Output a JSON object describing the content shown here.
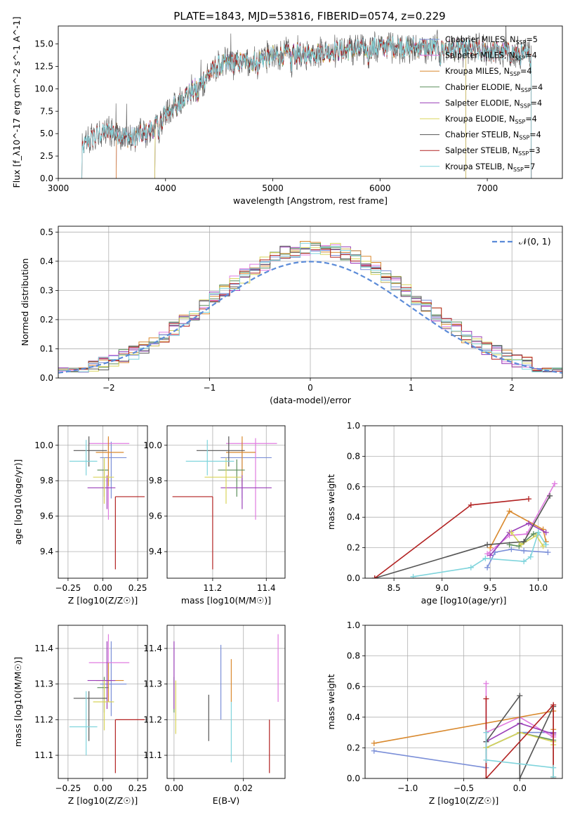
{
  "chart_data": [
    {
      "type": "line",
      "title": "PLATE=1843, MJD=53816, FIBERID=0574, z=0.229",
      "xlabel": "wavelength [Angstrom, rest frame]",
      "ylabel": "Flux [f_λ10^-17 erg cm^-2 s^-1 A^-1]",
      "xlim": [
        3000,
        7700
      ],
      "ylim": [
        0,
        17
      ],
      "xticks": [
        3000,
        4000,
        5000,
        6000,
        7000
      ],
      "yticks": [
        0.0,
        2.5,
        5.0,
        7.5,
        10.0,
        12.5,
        15.0
      ],
      "grid": false,
      "legend_position": "upper-right",
      "series": [
        {
          "name": "Chabrier MILES, N_SSP=5",
          "color": "#7b8fd8",
          "start": 3540,
          "end": 7410
        },
        {
          "name": "Salpeter MILES, N_SSP=4",
          "color": "#e07be0",
          "start": 3540,
          "end": 7410
        },
        {
          "name": "Kroupa MILES, N_SSP=4",
          "color": "#d9892e",
          "start": 3540,
          "end": 7410
        },
        {
          "name": "Chabrier ELODIE, N_SSP=4",
          "color": "#5c8f5c",
          "start": 3900,
          "end": 6800
        },
        {
          "name": "Salpeter ELODIE, N_SSP=4",
          "color": "#9a3fb8",
          "start": 3900,
          "end": 6800
        },
        {
          "name": "Kroupa ELODIE, N_SSP=4",
          "color": "#d8d45a",
          "start": 3900,
          "end": 6800
        },
        {
          "name": "Chabrier STELIB, N_SSP=4",
          "color": "#555555",
          "start": 3220,
          "end": 7410
        },
        {
          "name": "Salpeter STELIB, N_SSP=3",
          "color": "#b22222",
          "start": 3220,
          "end": 7410
        },
        {
          "name": "Kroupa STELIB, N_SSP=7",
          "color": "#7fd4dc",
          "start": 3220,
          "end": 7410
        }
      ],
      "continuum": {
        "x": [
          3220,
          3300,
          3400,
          3500,
          3600,
          3700,
          3800,
          3900,
          4000,
          4100,
          4200,
          4300,
          4400,
          4500,
          4600,
          4800,
          5000,
          5200,
          5400,
          5600,
          5800,
          6000,
          6200,
          6400,
          6600,
          6800,
          7000,
          7200,
          7400
        ],
        "y": [
          3.4,
          4.4,
          5.0,
          5.3,
          4.7,
          4.6,
          5.0,
          5.8,
          7.2,
          8.2,
          9.4,
          10.2,
          11.6,
          12.6,
          12.9,
          13.1,
          13.6,
          13.9,
          14.0,
          14.3,
          14.4,
          14.7,
          14.7,
          14.6,
          14.5,
          14.3,
          14.2,
          14.0,
          13.7
        ]
      }
    },
    {
      "type": "histogram",
      "xlabel": "(data-model)/error",
      "ylabel": "Normed distribution",
      "xlim": [
        -2.5,
        2.5
      ],
      "ylim": [
        0,
        0.52
      ],
      "xticks": [
        -2,
        -1,
        0,
        1,
        2
      ],
      "yticks": [
        0.0,
        0.1,
        0.2,
        0.3,
        0.4,
        0.5
      ],
      "grid": true,
      "legend_position": "upper-right",
      "reference_curve": {
        "name": "𝒩(0, 1)",
        "color": "#5b8bd8",
        "style": "dashed"
      },
      "bin_width": 0.1,
      "series_colors": [
        "#7b8fd8",
        "#e07be0",
        "#d9892e",
        "#5c8f5c",
        "#9a3fb8",
        "#d8d45a",
        "#555555",
        "#b22222",
        "#7fd4dc"
      ]
    },
    {
      "type": "scatter",
      "xlabel": "Z [log10(Z/Z☉)]",
      "ylabel": "age [log10(age/yr)]",
      "xlim": [
        -0.32,
        0.32
      ],
      "ylim": [
        9.25,
        10.11
      ],
      "xticks": [
        -0.25,
        0.0,
        0.25
      ],
      "xtick_labels": [
        "−0.25",
        "0.00",
        "0.25"
      ],
      "yticks": [
        9.4,
        9.6,
        9.8,
        10.0
      ],
      "grid": true,
      "points": [
        {
          "color": "#7b8fd8",
          "x": 0.06,
          "y": 9.93,
          "xerr": [
            0.08,
            0.11
          ],
          "yerr": [
            0.23,
            0.09
          ]
        },
        {
          "color": "#e07be0",
          "x": 0.04,
          "y": 10.01,
          "xerr": [
            0.14,
            0.15
          ],
          "yerr": [
            0.43,
            0.03
          ]
        },
        {
          "color": "#d9892e",
          "x": 0.04,
          "y": 9.96,
          "xerr": [
            0.09,
            0.11
          ],
          "yerr": [
            0.19,
            0.09
          ]
        },
        {
          "color": "#5c8f5c",
          "x": 0.01,
          "y": 9.86,
          "xerr": [
            0.05,
            0.03
          ],
          "yerr": [
            0.15,
            0.06
          ]
        },
        {
          "color": "#9a3fb8",
          "x": 0.03,
          "y": 9.76,
          "xerr": [
            0.14,
            0.06
          ],
          "yerr": [
            0.12,
            0.07
          ]
        },
        {
          "color": "#d8d45a",
          "x": 0.01,
          "y": 9.82,
          "xerr": [
            0.08,
            0.07
          ],
          "yerr": [
            0.15,
            0.11
          ]
        },
        {
          "color": "#555555",
          "x": -0.1,
          "y": 9.97,
          "xerr": [
            0.11,
            0.13
          ],
          "yerr": [
            0.09,
            0.08
          ]
        },
        {
          "color": "#b22222",
          "x": 0.09,
          "y": 9.71,
          "xerr": [
            0.0,
            0.21
          ],
          "yerr": [
            0.41,
            0.0
          ]
        },
        {
          "color": "#7fd4dc",
          "x": -0.12,
          "y": 9.91,
          "xerr": [
            0.12,
            0.08
          ],
          "yerr": [
            0.08,
            0.12
          ]
        }
      ]
    },
    {
      "type": "scatter",
      "xlabel": "mass [log10(M/M☉)]",
      "ylabel": "",
      "xlim": [
        11.03,
        11.47
      ],
      "ylim": [
        9.25,
        10.11
      ],
      "xticks": [
        11.2,
        11.4
      ],
      "yticks": [
        9.4,
        9.6,
        9.8,
        10.0
      ],
      "grid": true,
      "points": [
        {
          "color": "#7b8fd8",
          "x": 11.31,
          "y": 9.93,
          "xerr": [
            0.08,
            0.11
          ],
          "yerr": [
            0.23,
            0.09
          ]
        },
        {
          "color": "#e07be0",
          "x": 11.36,
          "y": 10.01,
          "xerr": [
            0.11,
            0.08
          ],
          "yerr": [
            0.43,
            0.03
          ]
        },
        {
          "color": "#d9892e",
          "x": 11.31,
          "y": 9.96,
          "xerr": [
            0.06,
            0.05
          ],
          "yerr": [
            0.19,
            0.09
          ]
        },
        {
          "color": "#5c8f5c",
          "x": 11.29,
          "y": 9.86,
          "xerr": [
            0.07,
            0.03
          ],
          "yerr": [
            0.15,
            0.06
          ]
        },
        {
          "color": "#9a3fb8",
          "x": 11.31,
          "y": 9.76,
          "xerr": [
            0.08,
            0.11
          ],
          "yerr": [
            0.12,
            0.07
          ]
        },
        {
          "color": "#d8d45a",
          "x": 11.25,
          "y": 9.82,
          "xerr": [
            0.08,
            0.06
          ],
          "yerr": [
            0.15,
            0.11
          ]
        },
        {
          "color": "#555555",
          "x": 11.26,
          "y": 9.97,
          "xerr": [
            0.12,
            0.06
          ],
          "yerr": [
            0.09,
            0.08
          ]
        },
        {
          "color": "#b22222",
          "x": 11.2,
          "y": 9.71,
          "xerr": [
            0.15,
            0.0
          ],
          "yerr": [
            0.41,
            0.0
          ]
        },
        {
          "color": "#7fd4dc",
          "x": 11.18,
          "y": 9.91,
          "xerr": [
            0.08,
            0.1
          ],
          "yerr": [
            0.08,
            0.12
          ]
        }
      ]
    },
    {
      "type": "line",
      "xlabel": "age [log10(age/yr)]",
      "ylabel": "mass weight",
      "xlim": [
        8.2,
        10.25
      ],
      "ylim": [
        0,
        1
      ],
      "xticks": [
        8.5,
        9.0,
        9.5,
        10.0
      ],
      "yticks": [
        0.0,
        0.2,
        0.4,
        0.6,
        0.8,
        1.0
      ],
      "grid": true,
      "series": [
        {
          "color": "#7b8fd8",
          "x": [
            9.47,
            9.55,
            9.72,
            9.85,
            10.1
          ],
          "y": [
            0.07,
            0.17,
            0.19,
            0.18,
            0.17
          ]
        },
        {
          "color": "#e07be0",
          "x": [
            9.47,
            9.7,
            9.88,
            10.17
          ],
          "y": [
            0.16,
            0.28,
            0.29,
            0.62
          ]
        },
        {
          "color": "#d9892e",
          "x": [
            9.5,
            9.7,
            10.05,
            10.08
          ],
          "y": [
            0.2,
            0.44,
            0.32,
            0.24
          ]
        },
        {
          "color": "#5c8f5c",
          "x": [
            9.7,
            9.8,
            9.95,
            10.0
          ],
          "y": [
            0.22,
            0.21,
            0.29,
            0.3
          ]
        },
        {
          "color": "#9a3fb8",
          "x": [
            9.5,
            9.7,
            9.9,
            10.08
          ],
          "y": [
            0.15,
            0.3,
            0.36,
            0.3
          ]
        },
        {
          "color": "#d8d45a",
          "x": [
            9.72,
            9.82,
            9.98,
            10.05
          ],
          "y": [
            0.3,
            0.22,
            0.28,
            0.21
          ]
        },
        {
          "color": "#555555",
          "x": [
            8.3,
            9.47,
            9.85,
            10.12
          ],
          "y": [
            0.0,
            0.22,
            0.24,
            0.54
          ]
        },
        {
          "color": "#b22222",
          "x": [
            8.3,
            9.3,
            9.9
          ],
          "y": [
            0.0,
            0.48,
            0.52
          ]
        },
        {
          "color": "#7fd4dc",
          "x": [
            8.7,
            9.3,
            9.45,
            9.85,
            9.92,
            10.0,
            10.08
          ],
          "y": [
            0.01,
            0.07,
            0.13,
            0.11,
            0.14,
            0.3,
            0.22
          ]
        }
      ]
    },
    {
      "type": "scatter",
      "xlabel": "Z [log10(Z/Z☉)]",
      "ylabel": "mass [log10(M/M☉)]",
      "xlim": [
        -0.32,
        0.32
      ],
      "ylim": [
        11.035,
        11.465
      ],
      "xticks": [
        -0.25,
        0.0,
        0.25
      ],
      "xtick_labels": [
        "−0.25",
        "0.00",
        "0.25"
      ],
      "yticks": [
        11.1,
        11.2,
        11.3,
        11.4
      ],
      "grid": true,
      "points": [
        {
          "color": "#7b8fd8",
          "x": 0.06,
          "y": 11.3,
          "xerr": [
            0.08,
            0.11
          ],
          "yerr": [
            0.09,
            0.12
          ]
        },
        {
          "color": "#e07be0",
          "x": 0.04,
          "y": 11.36,
          "xerr": [
            0.14,
            0.15
          ],
          "yerr": [
            0.11,
            0.08
          ]
        },
        {
          "color": "#d9892e",
          "x": 0.04,
          "y": 11.31,
          "xerr": [
            0.09,
            0.11
          ],
          "yerr": [
            0.06,
            0.05
          ]
        },
        {
          "color": "#5c8f5c",
          "x": 0.01,
          "y": 11.29,
          "xerr": [
            0.05,
            0.03
          ],
          "yerr": [
            0.07,
            0.03
          ]
        },
        {
          "color": "#9a3fb8",
          "x": 0.03,
          "y": 11.31,
          "xerr": [
            0.14,
            0.06
          ],
          "yerr": [
            0.08,
            0.11
          ]
        },
        {
          "color": "#d8d45a",
          "x": 0.01,
          "y": 11.25,
          "xerr": [
            0.08,
            0.07
          ],
          "yerr": [
            0.08,
            0.06
          ]
        },
        {
          "color": "#555555",
          "x": -0.1,
          "y": 11.26,
          "xerr": [
            0.11,
            0.13
          ],
          "yerr": [
            0.12,
            0.02
          ]
        },
        {
          "color": "#b22222",
          "x": 0.09,
          "y": 11.2,
          "xerr": [
            0.0,
            0.21
          ],
          "yerr": [
            0.15,
            0.0
          ]
        },
        {
          "color": "#7fd4dc",
          "x": -0.12,
          "y": 11.18,
          "xerr": [
            0.12,
            0.08
          ],
          "yerr": [
            0.08,
            0.1
          ]
        }
      ]
    },
    {
      "type": "scatter",
      "xlabel": "E(B-V)",
      "ylabel": "",
      "xlim": [
        -0.002,
        0.032
      ],
      "ylim": [
        11.035,
        11.465
      ],
      "xticks": [
        0.0,
        0.02
      ],
      "xtick_labels": [
        "0.00",
        "0.02"
      ],
      "yticks": [
        11.1,
        11.2,
        11.3,
        11.4
      ],
      "grid": true,
      "points": [
        {
          "color": "#7b8fd8",
          "x": 0.0135,
          "y": 11.3,
          "xerr": [
            0,
            0
          ],
          "yerr": [
            0.1,
            0.11
          ]
        },
        {
          "color": "#e07be0",
          "x": 0.03,
          "y": 11.36,
          "xerr": [
            0,
            0
          ],
          "yerr": [
            0.11,
            0.08
          ]
        },
        {
          "color": "#d9892e",
          "x": 0.0165,
          "y": 11.31,
          "xerr": [
            0,
            0
          ],
          "yerr": [
            0.06,
            0.06
          ]
        },
        {
          "color": "#5c8f5c",
          "x": 0.0,
          "y": 11.29,
          "xerr": [
            0,
            0
          ],
          "yerr": [
            0.07,
            0.03
          ]
        },
        {
          "color": "#9a3fb8",
          "x": 0.0,
          "y": 11.31,
          "xerr": [
            0,
            0
          ],
          "yerr": [
            0.08,
            0.11
          ]
        },
        {
          "color": "#d8d45a",
          "x": 0.0005,
          "y": 11.25,
          "xerr": [
            0,
            0
          ],
          "yerr": [
            0.09,
            0.06
          ]
        },
        {
          "color": "#555555",
          "x": 0.01,
          "y": 11.2,
          "xerr": [
            0,
            0
          ],
          "yerr": [
            0.06,
            0.07
          ]
        },
        {
          "color": "#b22222",
          "x": 0.0275,
          "y": 11.15,
          "xerr": [
            0,
            0
          ],
          "yerr": [
            0.1,
            0.05
          ]
        },
        {
          "color": "#7fd4dc",
          "x": 0.0165,
          "y": 11.15,
          "xerr": [
            0,
            0
          ],
          "yerr": [
            0.07,
            0.1
          ]
        }
      ]
    },
    {
      "type": "line",
      "xlabel": "Z [log10(Z/Z☉)]",
      "ylabel": "mass weight",
      "xlim": [
        -1.38,
        0.38
      ],
      "ylim": [
        0,
        1
      ],
      "xticks": [
        -1.0,
        -0.5,
        0.0
      ],
      "xtick_labels": [
        "−1.0",
        "−0.5",
        "0.0"
      ],
      "yticks": [
        0.0,
        0.2,
        0.4,
        0.6,
        0.8,
        1.0
      ],
      "grid": true,
      "series": [
        {
          "color": "#7b8fd8",
          "x": [
            -1.3,
            -0.3,
            -0.3,
            0.0,
            0.3
          ],
          "y": [
            0.18,
            0.07,
            0.2,
            0.3,
            0.3
          ]
        },
        {
          "color": "#e07be0",
          "x": [
            -0.3,
            -0.3,
            0.0,
            0.3,
            0.3
          ],
          "y": [
            0.62,
            0.3,
            0.4,
            0.27,
            0.28
          ]
        },
        {
          "color": "#d9892e",
          "x": [
            -1.3,
            0.3,
            0.3,
            0.3
          ],
          "y": [
            0.23,
            0.44,
            0.32,
            0.01
          ]
        },
        {
          "color": "#5c8f5c",
          "x": [
            -0.3,
            0.0,
            0.3
          ],
          "y": [
            0.2,
            0.3,
            0.25
          ]
        },
        {
          "color": "#9a3fb8",
          "x": [
            -0.3,
            0.0,
            0.3,
            0.3
          ],
          "y": [
            0.24,
            0.36,
            0.29,
            0.3
          ]
        },
        {
          "color": "#d8d45a",
          "x": [
            -0.3,
            0.0,
            0.3,
            0.3
          ],
          "y": [
            0.2,
            0.3,
            0.24,
            0.22
          ]
        },
        {
          "color": "#555555",
          "x": [
            -0.3,
            0.0,
            0.0,
            0.3,
            0.3
          ],
          "y": [
            0.24,
            0.54,
            0.0,
            0.47,
            0.0
          ]
        },
        {
          "color": "#b22222",
          "x": [
            -0.3,
            -0.3,
            0.3,
            0.3
          ],
          "y": [
            0.52,
            0.0,
            0.48,
            0.0
          ]
        },
        {
          "color": "#7fd4dc",
          "x": [
            -0.3,
            -0.3,
            0.3,
            0.3
          ],
          "y": [
            0.3,
            0.12,
            0.07,
            0.01
          ]
        }
      ]
    }
  ]
}
